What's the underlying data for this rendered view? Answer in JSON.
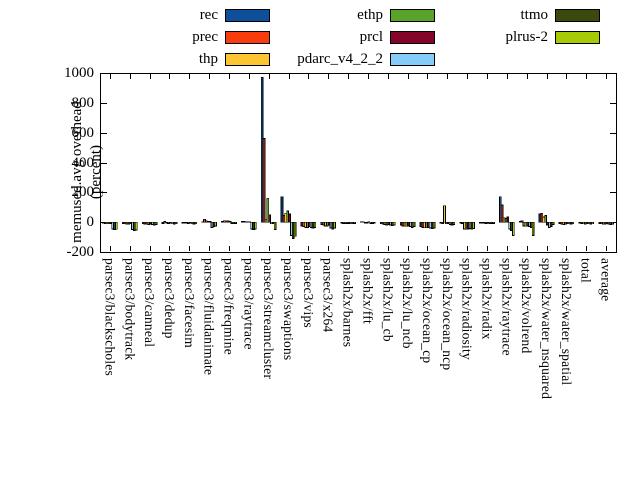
{
  "chart_data": {
    "type": "bar",
    "title": "",
    "ylabel": "memused.avg overhead (percent)",
    "ylabel_lines": [
      "memused.avg overhead",
      "(percent)"
    ],
    "xlabel": "",
    "ylim": [
      -200,
      1000
    ],
    "yticks": [
      -200,
      0,
      200,
      400,
      600,
      800,
      1000
    ],
    "grid": false,
    "legend_position": "top",
    "categories": [
      "parsec3/blackscholes",
      "parsec3/bodytrack",
      "parsec3/canneal",
      "parsec3/dedup",
      "parsec3/facesim",
      "parsec3/fluidanimate",
      "parsec3/freqmine",
      "parsec3/raytrace",
      "parsec3/streamcluster",
      "parsec3/swaptions",
      "parsec3/vips",
      "parsec3/x264",
      "splash2x/barnes",
      "splash2x/fft",
      "splash2x/lu_cb",
      "splash2x/lu_ncb",
      "splash2x/ocean_cp",
      "splash2x/ocean_ncp",
      "splash2x/radiosity",
      "splash2x/radix",
      "splash2x/raytrace",
      "splash2x/volrend",
      "splash2x/water_nsquared",
      "splash2x/water_spatial",
      "total",
      "average"
    ],
    "series": [
      {
        "name": "rec",
        "color": "#0e4f9c",
        "values": [
          -5,
          -8,
          -10,
          -8,
          -5,
          3,
          5,
          5,
          970,
          170,
          -25,
          -15,
          -5,
          3,
          -10,
          -20,
          -30,
          -5,
          -5,
          -5,
          170,
          5,
          55,
          -8,
          -5,
          -8
        ]
      },
      {
        "name": "prec",
        "color": "#f83c0d",
        "values": [
          -8,
          -10,
          -12,
          5,
          -5,
          20,
          10,
          5,
          560,
          45,
          -30,
          -20,
          -8,
          3,
          -12,
          -25,
          -35,
          -8,
          -8,
          -5,
          115,
          8,
          60,
          -12,
          -8,
          -10
        ]
      },
      {
        "name": "thp",
        "color": "#fdc532",
        "values": [
          -10,
          -12,
          -12,
          -5,
          -5,
          8,
          8,
          3,
          20,
          60,
          -35,
          -25,
          -8,
          -5,
          -15,
          -28,
          -38,
          110,
          -45,
          -5,
          30,
          -25,
          35,
          -15,
          -10,
          -12
        ]
      },
      {
        "name": "ethp",
        "color": "#58a32a",
        "values": [
          -10,
          -12,
          -15,
          -8,
          -8,
          5,
          8,
          3,
          160,
          75,
          -35,
          -25,
          -8,
          -5,
          -18,
          -28,
          -38,
          -10,
          -48,
          -8,
          25,
          -28,
          45,
          -12,
          -12,
          -12
        ]
      },
      {
        "name": "prcl",
        "color": "#84042a",
        "values": [
          -8,
          -10,
          -12,
          -5,
          -5,
          5,
          5,
          3,
          50,
          55,
          -30,
          -20,
          -8,
          3,
          -15,
          -25,
          -35,
          -8,
          -45,
          -5,
          35,
          -25,
          -20,
          -10,
          -10,
          -10
        ]
      },
      {
        "name": "pdarc_v4_2_2",
        "color": "#85ccf8",
        "values": [
          -45,
          -50,
          -15,
          -10,
          -10,
          -35,
          -8,
          -45,
          -10,
          -90,
          -35,
          -40,
          -10,
          -8,
          -20,
          -30,
          -40,
          -15,
          -42,
          -8,
          -45,
          -30,
          -35,
          -10,
          -10,
          -12
        ]
      },
      {
        "name": "ttmo",
        "color": "#3c490e",
        "values": [
          -50,
          -55,
          -18,
          -12,
          -12,
          -30,
          -10,
          -50,
          -8,
          -110,
          -40,
          -45,
          -10,
          -8,
          -22,
          -35,
          -42,
          -20,
          -48,
          -8,
          -55,
          -35,
          -30,
          -12,
          -12,
          -15
        ]
      },
      {
        "name": "plrus-2",
        "color": "#a6ca05",
        "values": [
          -48,
          -52,
          -15,
          -10,
          -10,
          -25,
          -8,
          -45,
          -50,
          -95,
          -35,
          -40,
          -8,
          -5,
          -20,
          -30,
          -40,
          -15,
          -42,
          -8,
          -90,
          -90,
          -15,
          -10,
          -10,
          -12
        ]
      }
    ]
  }
}
